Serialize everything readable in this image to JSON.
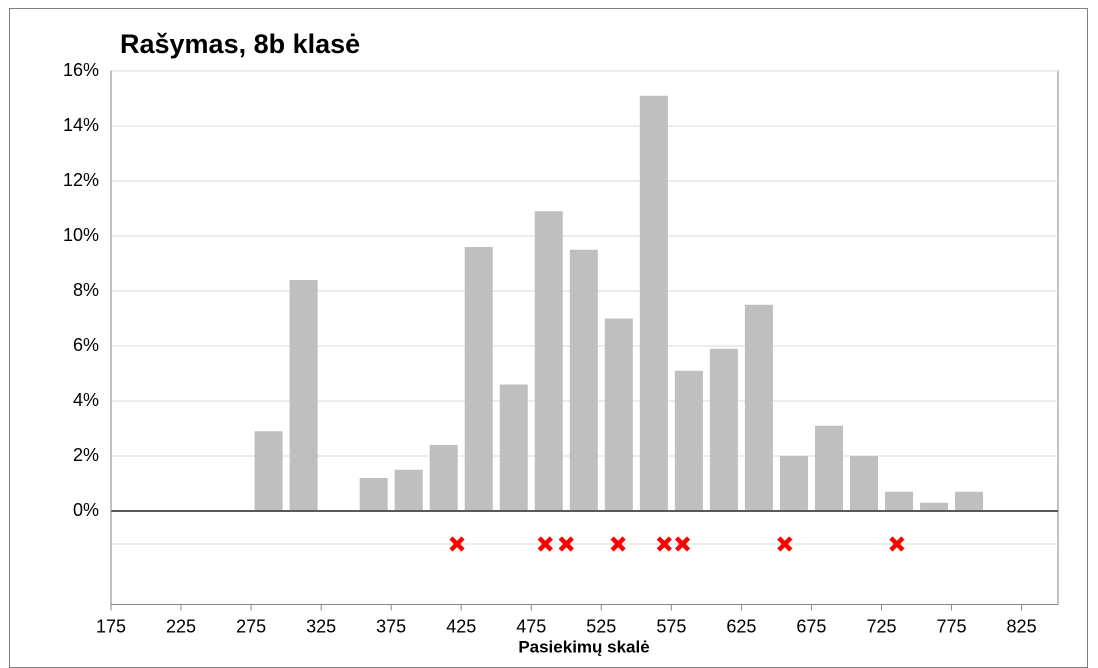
{
  "chart_data": {
    "type": "histogram",
    "title": "Rašymas, 8b klasė",
    "xlabel": "Pasiekimų skalė",
    "bins": [
      175,
      200,
      225,
      250,
      275,
      300,
      325,
      350,
      375,
      400,
      425,
      450,
      475,
      500,
      525,
      550,
      575,
      600,
      625,
      650,
      675,
      700,
      725,
      750,
      775,
      800,
      825
    ],
    "values": [
      0,
      0,
      0,
      0,
      2.9,
      8.4,
      0,
      1.2,
      1.5,
      2.4,
      9.6,
      4.6,
      10.9,
      9.5,
      7.0,
      15.1,
      5.1,
      5.9,
      7.5,
      2.0,
      3.1,
      2.0,
      0.7,
      0.3,
      0.7,
      0
    ],
    "color": "#bfbfbf",
    "markers": {
      "color": "#ff0000",
      "x": [
        422,
        485,
        500,
        537,
        570,
        583,
        656,
        736
      ],
      "y": [
        -1.2,
        -1.2,
        -1.2,
        -1.2,
        -1.2,
        -1.2,
        -1.2,
        -1.2
      ]
    },
    "xlim": [
      175,
      851
    ],
    "ylim": [
      -3.4,
      16
    ],
    "xticks": [
      175,
      225,
      275,
      325,
      375,
      425,
      475,
      525,
      575,
      625,
      675,
      725,
      775,
      825
    ],
    "yticks": [
      {
        "value": 0,
        "label": "0%"
      },
      {
        "value": 2,
        "label": "2%"
      },
      {
        "value": 4,
        "label": "4%"
      },
      {
        "value": 6,
        "label": "6%"
      },
      {
        "value": 8,
        "label": "8%"
      },
      {
        "value": 10,
        "label": "10%"
      },
      {
        "value": 12,
        "label": "12%"
      },
      {
        "value": 14,
        "label": "14%"
      },
      {
        "value": 16,
        "label": "16%"
      }
    ],
    "grid": true
  }
}
